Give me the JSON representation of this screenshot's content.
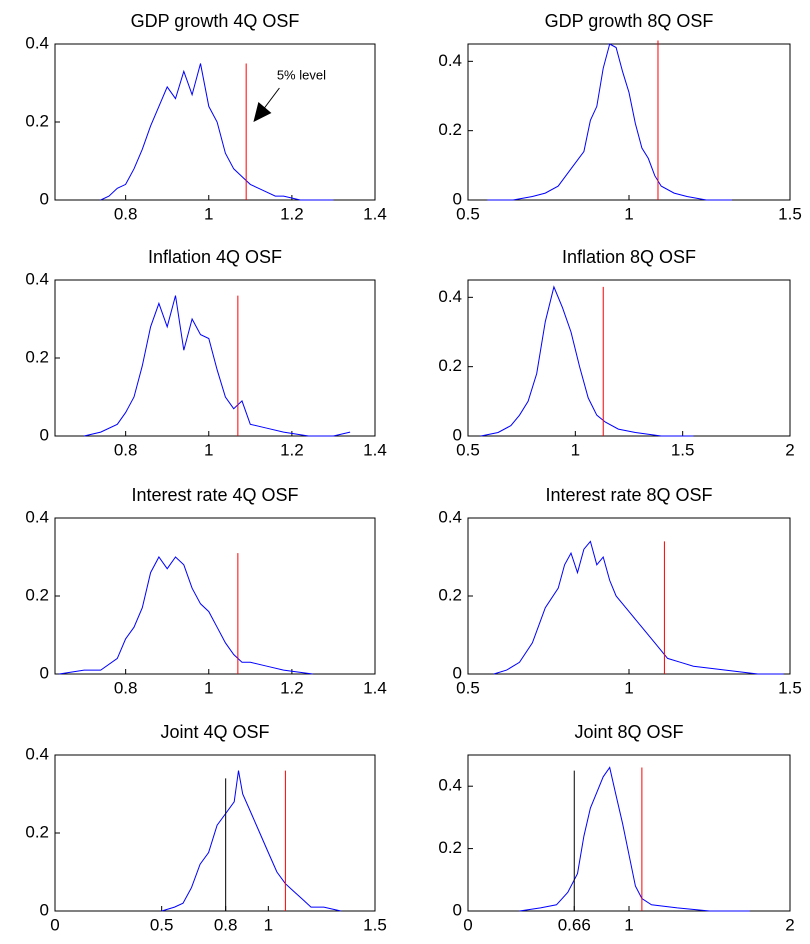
{
  "chart_data": [
    {
      "type": "line",
      "title": "GDP growth 4Q OSF",
      "color": "#0000ff",
      "x": [
        0.74,
        0.76,
        0.78,
        0.8,
        0.82,
        0.84,
        0.86,
        0.88,
        0.9,
        0.92,
        0.94,
        0.96,
        0.98,
        1.0,
        1.02,
        1.04,
        1.06,
        1.08,
        1.1,
        1.12,
        1.14,
        1.16,
        1.18,
        1.22,
        1.3
      ],
      "values": [
        0,
        0.01,
        0.03,
        0.04,
        0.08,
        0.13,
        0.19,
        0.24,
        0.29,
        0.26,
        0.33,
        0.27,
        0.35,
        0.24,
        0.2,
        0.12,
        0.08,
        0.06,
        0.04,
        0.03,
        0.02,
        0.01,
        0.01,
        0,
        0
      ],
      "xlim": [
        0.63,
        1.4
      ],
      "xticks": [
        0.8,
        1,
        1.2,
        1.4
      ],
      "ylim": [
        0,
        0.4
      ],
      "yticks": [
        0,
        0.2,
        0.4
      ],
      "reference_lines": [
        {
          "x": 1.09,
          "y": 0.35,
          "color": "#ff0000"
        }
      ],
      "annotation": "5% level"
    },
    {
      "type": "line",
      "title": "GDP growth 8Q OSF",
      "color": "#0000ff",
      "x": [
        0.56,
        0.64,
        0.7,
        0.74,
        0.78,
        0.82,
        0.86,
        0.88,
        0.9,
        0.92,
        0.94,
        0.96,
        0.98,
        1.0,
        1.02,
        1.04,
        1.06,
        1.08,
        1.1,
        1.14,
        1.18,
        1.24,
        1.32
      ],
      "values": [
        0,
        0,
        0.01,
        0.02,
        0.04,
        0.09,
        0.14,
        0.23,
        0.27,
        0.38,
        0.45,
        0.44,
        0.37,
        0.31,
        0.22,
        0.15,
        0.12,
        0.07,
        0.04,
        0.02,
        0.01,
        0,
        0
      ],
      "xlim": [
        0.5,
        1.5
      ],
      "xticks": [
        0.5,
        1,
        1.5
      ],
      "ylim": [
        0,
        0.45
      ],
      "yticks": [
        0,
        0.2,
        0.4
      ],
      "reference_lines": [
        {
          "x": 1.09,
          "y": 0.46,
          "color": "#ff0000"
        }
      ]
    },
    {
      "type": "line",
      "title": "Inflation 4Q OSF",
      "color": "#0000ff",
      "x": [
        0.7,
        0.74,
        0.78,
        0.8,
        0.82,
        0.84,
        0.86,
        0.88,
        0.9,
        0.92,
        0.94,
        0.96,
        0.98,
        1.0,
        1.02,
        1.04,
        1.06,
        1.08,
        1.1,
        1.14,
        1.18,
        1.24,
        1.3,
        1.34
      ],
      "values": [
        0,
        0.01,
        0.03,
        0.06,
        0.1,
        0.18,
        0.28,
        0.34,
        0.28,
        0.36,
        0.22,
        0.3,
        0.26,
        0.25,
        0.17,
        0.1,
        0.07,
        0.09,
        0.03,
        0.02,
        0.01,
        0,
        0,
        0.01
      ],
      "xlim": [
        0.63,
        1.4
      ],
      "xticks": [
        0.8,
        1,
        1.2,
        1.4
      ],
      "ylim": [
        0,
        0.4
      ],
      "yticks": [
        0,
        0.2,
        0.4
      ],
      "reference_lines": [
        {
          "x": 1.07,
          "y": 0.36,
          "color": "#ff0000"
        }
      ]
    },
    {
      "type": "line",
      "title": "Inflation 8Q OSF",
      "color": "#0000ff",
      "x": [
        0.56,
        0.64,
        0.7,
        0.74,
        0.78,
        0.82,
        0.86,
        0.9,
        0.94,
        0.98,
        1.02,
        1.06,
        1.1,
        1.14,
        1.2,
        1.28,
        1.4,
        1.55
      ],
      "values": [
        0,
        0.01,
        0.03,
        0.06,
        0.1,
        0.18,
        0.33,
        0.43,
        0.37,
        0.3,
        0.2,
        0.11,
        0.06,
        0.04,
        0.02,
        0.01,
        0,
        0
      ],
      "xlim": [
        0.5,
        2
      ],
      "xticks": [
        0.5,
        1,
        1.5,
        2
      ],
      "ylim": [
        0,
        0.45
      ],
      "yticks": [
        0,
        0.2,
        0.4
      ],
      "reference_lines": [
        {
          "x": 1.13,
          "y": 0.43,
          "color": "#ff0000"
        }
      ]
    },
    {
      "type": "line",
      "title": "Interest rate 4Q OSF",
      "color": "#0000ff",
      "x": [
        0.64,
        0.7,
        0.74,
        0.78,
        0.8,
        0.82,
        0.84,
        0.86,
        0.88,
        0.9,
        0.92,
        0.94,
        0.96,
        0.98,
        1.0,
        1.02,
        1.04,
        1.06,
        1.08,
        1.1,
        1.14,
        1.18,
        1.25
      ],
      "values": [
        0,
        0.01,
        0.01,
        0.04,
        0.09,
        0.12,
        0.17,
        0.26,
        0.3,
        0.27,
        0.3,
        0.28,
        0.22,
        0.18,
        0.16,
        0.12,
        0.08,
        0.05,
        0.03,
        0.03,
        0.02,
        0.01,
        0
      ],
      "xlim": [
        0.63,
        1.4
      ],
      "xticks": [
        0.8,
        1,
        1.2,
        1.4
      ],
      "ylim": [
        0,
        0.4
      ],
      "yticks": [
        0,
        0.2,
        0.4
      ],
      "reference_lines": [
        {
          "x": 1.07,
          "y": 0.31,
          "color": "#ff0000"
        }
      ]
    },
    {
      "type": "line",
      "title": "Interest rate 8Q OSF",
      "color": "#0000ff",
      "x": [
        0.58,
        0.62,
        0.66,
        0.7,
        0.74,
        0.78,
        0.8,
        0.82,
        0.84,
        0.86,
        0.88,
        0.9,
        0.92,
        0.94,
        0.96,
        1.0,
        1.04,
        1.08,
        1.12,
        1.16,
        1.2,
        1.3,
        1.4,
        1.48
      ],
      "values": [
        0,
        0.01,
        0.03,
        0.08,
        0.17,
        0.22,
        0.28,
        0.31,
        0.26,
        0.32,
        0.34,
        0.28,
        0.3,
        0.24,
        0.2,
        0.16,
        0.12,
        0.08,
        0.04,
        0.03,
        0.02,
        0.01,
        0,
        0
      ],
      "xlim": [
        0.5,
        1.5
      ],
      "xticks": [
        0.5,
        1,
        1.5
      ],
      "ylim": [
        0,
        0.4
      ],
      "yticks": [
        0,
        0.2,
        0.4
      ],
      "reference_lines": [
        {
          "x": 1.11,
          "y": 0.34,
          "color": "#ff0000"
        }
      ]
    },
    {
      "type": "line",
      "title": "Joint 4Q OSF",
      "color": "#0000ff",
      "x": [
        0.5,
        0.56,
        0.6,
        0.64,
        0.68,
        0.72,
        0.76,
        0.8,
        0.84,
        0.86,
        0.88,
        0.92,
        0.96,
        1.0,
        1.04,
        1.08,
        1.12,
        1.16,
        1.2,
        1.26,
        1.34
      ],
      "values": [
        0,
        0.01,
        0.02,
        0.06,
        0.12,
        0.15,
        0.22,
        0.25,
        0.28,
        0.36,
        0.3,
        0.25,
        0.2,
        0.15,
        0.1,
        0.07,
        0.05,
        0.03,
        0.01,
        0.01,
        0
      ],
      "xlim": [
        0,
        1.5
      ],
      "xticks": [
        0,
        0.5,
        0.8,
        1,
        1.5
      ],
      "ylim": [
        0,
        0.4
      ],
      "yticks": [
        0,
        0.2,
        0.4
      ],
      "reference_lines": [
        {
          "x": 0.8,
          "y": 0.34,
          "color": "#000000"
        },
        {
          "x": 1.08,
          "y": 0.36,
          "color": "#ff0000"
        }
      ]
    },
    {
      "type": "line",
      "title": "Joint 8Q OSF",
      "color": "#0000ff",
      "x": [
        0.32,
        0.45,
        0.55,
        0.62,
        0.68,
        0.72,
        0.76,
        0.8,
        0.84,
        0.88,
        0.92,
        0.96,
        1.0,
        1.04,
        1.08,
        1.14,
        1.3,
        1.5,
        1.75
      ],
      "values": [
        0,
        0.01,
        0.02,
        0.06,
        0.12,
        0.24,
        0.33,
        0.38,
        0.43,
        0.46,
        0.37,
        0.28,
        0.18,
        0.08,
        0.04,
        0.02,
        0.01,
        0,
        0
      ],
      "xlim": [
        0,
        2
      ],
      "xticks": [
        0,
        0.66,
        1,
        2
      ],
      "ylim": [
        0,
        0.5
      ],
      "yticks": [
        0,
        0.2,
        0.4
      ],
      "reference_lines": [
        {
          "x": 0.66,
          "y": 0.45,
          "color": "#000000"
        },
        {
          "x": 1.08,
          "y": 0.46,
          "color": "#ff0000"
        }
      ]
    }
  ]
}
